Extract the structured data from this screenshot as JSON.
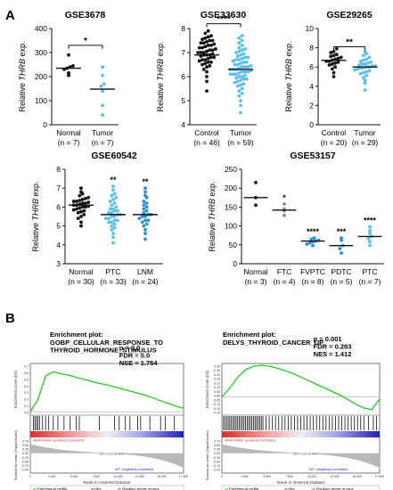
{
  "panel_labels": {
    "A": "A",
    "B": "B"
  },
  "colors": {
    "dark": "#111111",
    "light": "#5bbfe8",
    "mid": "#2b8fd1",
    "gsea_line": "#22cc22",
    "hits": "#111111",
    "gray_area": "#b8b8b8"
  },
  "chart_data": [
    {
      "type": "scatter",
      "title": "GSE3678",
      "ylabel_prefix": "Relative ",
      "ylabel_italic": "THRB",
      "ylabel_suffix": " exp.",
      "ylim": [
        0,
        400
      ],
      "yticks": [
        0,
        100,
        200,
        300,
        400
      ],
      "groups": [
        {
          "name": "Normal",
          "n_label": "(n = 7)",
          "color": "dark",
          "values": [
            205,
            215,
            230,
            235,
            240,
            245,
            290
          ],
          "mean": 235
        },
        {
          "name": "Tumor",
          "n_label": "(n = 7)",
          "color": "light",
          "values": [
            40,
            80,
            140,
            160,
            170,
            205,
            240
          ],
          "mean": 148
        }
      ],
      "significance": [
        {
          "from": 0,
          "to": 1,
          "label": "*",
          "level": 330
        }
      ]
    },
    {
      "type": "scatter",
      "title": "GSE33630",
      "ylabel_prefix": "Relative ",
      "ylabel_italic": "THRB",
      "ylabel_suffix": " exp.",
      "ylim": [
        4,
        8
      ],
      "yticks": [
        4,
        5,
        6,
        7,
        8
      ],
      "groups": [
        {
          "name": "Control",
          "n_label": "(n = 46)",
          "color": "dark",
          "values": [
            5.4,
            5.8,
            6.0,
            6.2,
            6.3,
            6.4,
            6.45,
            6.5,
            6.55,
            6.6,
            6.6,
            6.65,
            6.7,
            6.7,
            6.75,
            6.8,
            6.8,
            6.85,
            6.9,
            6.9,
            6.9,
            6.95,
            7.0,
            7.0,
            7.0,
            7.05,
            7.1,
            7.1,
            7.15,
            7.2,
            7.2,
            7.25,
            7.3,
            7.3,
            7.35,
            7.4,
            7.4,
            7.45,
            7.5,
            7.5,
            7.55,
            7.6,
            7.65,
            7.7,
            7.8,
            7.9
          ],
          "mean": 6.9
        },
        {
          "name": "Tumor",
          "n_label": "(n = 59)",
          "color": "light",
          "values": [
            4.5,
            4.8,
            5.0,
            5.2,
            5.3,
            5.4,
            5.5,
            5.6,
            5.65,
            5.7,
            5.75,
            5.8,
            5.85,
            5.9,
            5.9,
            5.95,
            6.0,
            6.0,
            6.05,
            6.1,
            6.1,
            6.1,
            6.15,
            6.2,
            6.2,
            6.2,
            6.25,
            6.3,
            6.3,
            6.3,
            6.35,
            6.4,
            6.4,
            6.4,
            6.45,
            6.5,
            6.5,
            6.55,
            6.6,
            6.6,
            6.65,
            6.7,
            6.7,
            6.75,
            6.8,
            6.8,
            6.85,
            6.9,
            6.95,
            7.0,
            7.05,
            7.1,
            7.15,
            7.2,
            7.3,
            7.4,
            7.5,
            7.6,
            7.7
          ],
          "mean": 6.3
        }
      ],
      "significance": [
        {
          "from": 0,
          "to": 1,
          "label": "****",
          "level": 8.2
        }
      ]
    },
    {
      "type": "scatter",
      "title": "GSE29265",
      "ylabel_prefix": "Relative ",
      "ylabel_italic": "THRB",
      "ylabel_suffix": " exp.",
      "ylim": [
        0,
        10
      ],
      "yticks": [
        0,
        2,
        4,
        6,
        8,
        10
      ],
      "groups": [
        {
          "name": "Control",
          "n_label": "(n = 20)",
          "color": "dark",
          "values": [
            5.0,
            5.4,
            5.8,
            6.0,
            6.2,
            6.3,
            6.4,
            6.5,
            6.6,
            6.6,
            6.7,
            6.8,
            6.9,
            7.0,
            7.1,
            7.2,
            7.3,
            7.5,
            7.6,
            7.9
          ],
          "mean": 6.7
        },
        {
          "name": "Tumor",
          "n_label": "(n = 29)",
          "color": "light",
          "values": [
            3.6,
            4.3,
            4.6,
            4.9,
            5.1,
            5.3,
            5.4,
            5.5,
            5.6,
            5.7,
            5.8,
            5.9,
            5.9,
            6.0,
            6.0,
            6.1,
            6.1,
            6.2,
            6.3,
            6.3,
            6.4,
            6.5,
            6.6,
            6.7,
            6.8,
            7.0,
            7.2,
            7.4,
            7.6
          ],
          "mean": 6.0
        }
      ],
      "significance": [
        {
          "from": 0,
          "to": 1,
          "label": "**",
          "level": 8.1
        }
      ]
    },
    {
      "type": "scatter",
      "title": "GSE60542",
      "ylabel_prefix": "Relative ",
      "ylabel_italic": "THRB",
      "ylabel_suffix": " exp.",
      "ylim": [
        3,
        8
      ],
      "yticks": [
        3,
        4,
        5,
        6,
        7,
        8
      ],
      "groups": [
        {
          "name": "Normal",
          "n_label": "(n = 30)",
          "color": "dark",
          "values": [
            5.0,
            5.2,
            5.4,
            5.5,
            5.6,
            5.7,
            5.75,
            5.8,
            5.85,
            5.9,
            5.95,
            6.0,
            6.0,
            6.05,
            6.1,
            6.1,
            6.15,
            6.2,
            6.2,
            6.25,
            6.3,
            6.3,
            6.35,
            6.4,
            6.45,
            6.5,
            6.6,
            6.7,
            6.8,
            7.0
          ],
          "mean": 6.1
        },
        {
          "name": "PTC",
          "n_label": "(n = 33)",
          "color": "light",
          "values": [
            4.1,
            4.4,
            4.6,
            4.8,
            4.9,
            5.0,
            5.1,
            5.2,
            5.2,
            5.3,
            5.3,
            5.4,
            5.4,
            5.5,
            5.5,
            5.6,
            5.6,
            5.7,
            5.7,
            5.8,
            5.8,
            5.9,
            5.9,
            6.0,
            6.1,
            6.2,
            6.3,
            6.4,
            6.5,
            6.6,
            6.7,
            6.9,
            7.1
          ],
          "mean": 5.6
        },
        {
          "name": "LNM",
          "n_label": "(n = 24)",
          "color": "mid",
          "values": [
            4.3,
            4.6,
            4.8,
            5.0,
            5.1,
            5.2,
            5.3,
            5.3,
            5.4,
            5.5,
            5.5,
            5.6,
            5.6,
            5.7,
            5.8,
            5.9,
            6.0,
            6.1,
            6.2,
            6.3,
            6.5,
            6.6,
            6.8,
            7.0
          ],
          "mean": 5.6
        }
      ],
      "group_marks": [
        {
          "group": 1,
          "label": "**"
        },
        {
          "group": 2,
          "label": "**"
        }
      ]
    },
    {
      "type": "scatter",
      "title": "GSE53157",
      "ylabel_prefix": "Relative ",
      "ylabel_italic": "THRB",
      "ylabel_suffix": " exp.",
      "ylim": [
        0,
        250
      ],
      "yticks": [
        0,
        50,
        100,
        150,
        200,
        250
      ],
      "groups": [
        {
          "name": "Normal",
          "n_label": "(n = 3)",
          "color": "dark",
          "values": [
            155,
            175,
            215
          ],
          "mean": 175
        },
        {
          "name": "FTC",
          "n_label": "(n = 4)",
          "color": "#888888",
          "values": [
            128,
            140,
            145,
            158
          ],
          "mean": 142
        },
        {
          "name": "FVPTC",
          "n_label": "(n = 8)",
          "color": "mid",
          "values": [
            48,
            52,
            55,
            58,
            60,
            62,
            65,
            68
          ],
          "mean": 60
        },
        {
          "name": "PDTC",
          "n_label": "(n = 5)",
          "color": "mid",
          "values": [
            28,
            40,
            48,
            62,
            68
          ],
          "mean": 48
        },
        {
          "name": "PTC",
          "n_label": "(n = 7)",
          "color": "light",
          "values": [
            48,
            58,
            66,
            72,
            80,
            88,
            98
          ],
          "mean": 72
        }
      ],
      "group_marks": [
        {
          "group": 1,
          "label": "*"
        },
        {
          "group": 2,
          "label": "****"
        },
        {
          "group": 3,
          "label": "***"
        },
        {
          "group": 4,
          "label": "****"
        }
      ]
    }
  ],
  "gsea": [
    {
      "heading": "Enrichment plot:",
      "title_lines": [
        "GOBP_CELLULAR_RESPONSE_TO",
        "THYROID_HORMONE_STIMULUS"
      ],
      "stats": [
        "p = 0.0",
        "FDR = 0.0",
        "NSE = 1.754"
      ],
      "ylabel_top": "Enrichment score (ES)",
      "ylabel_bottom": "Ranked list metric (Signal2Noise)",
      "xlabel": "Rank in Ordered Dataset",
      "pos_label": "'BRAFV600E' (positively correlated)",
      "neg_label": "'WT' (negatively correlated)",
      "zero_label": "Zero cross at 3217",
      "es_ticks": [
        "0.7",
        "0.6",
        "0.5",
        "0.4",
        "0.3",
        "0.2",
        "0.1",
        "0.0"
      ],
      "rank_ticks": [
        "0.75",
        "0.50",
        "0.25",
        "0.00",
        "-0.25",
        "-0.50",
        "-0.75",
        "-1.00"
      ],
      "x_ticks": [
        "0",
        "2,500",
        "5,000",
        "7,500",
        "10,000",
        "12,500",
        "15,000",
        "17,500"
      ],
      "es_curve": [
        0.0,
        0.18,
        0.52,
        0.58,
        0.55,
        0.53,
        0.5,
        0.47,
        0.44,
        0.41,
        0.39,
        0.36,
        0.33,
        0.3,
        0.27,
        0.24,
        0.2,
        0.16,
        0.12,
        0.08,
        0.05
      ],
      "es_range": [
        -0.05,
        0.7
      ],
      "hits": [
        0.02,
        0.03,
        0.04,
        0.05,
        0.06,
        0.08,
        0.1,
        0.12,
        0.15,
        0.18,
        0.22,
        0.26,
        0.3,
        0.32,
        0.45,
        0.55,
        0.58,
        0.62,
        0.65,
        0.7,
        0.72,
        0.78,
        0.85,
        0.88,
        0.94
      ],
      "legend": [
        "Enrichment profile",
        "Hits",
        "Ranking metric scores"
      ]
    },
    {
      "heading": "Enrichment plot:",
      "title_lines": [
        "DELYS_THYROID_CANCER_UP"
      ],
      "stats": [
        "p = 0.001",
        "FDR = 0.283",
        "NES = 1.412"
      ],
      "ylabel_top": "Enrichment score (ES)",
      "ylabel_bottom": "Ranked list metric (Signal2Noise)",
      "xlabel": "Rank in Ordered Dataset",
      "pos_label": "'BRAFV600E' (positively correlated)",
      "neg_label": "'WT' (negatively correlated)",
      "zero_label": "Zero cross at 3217",
      "es_ticks": [
        "0.35",
        "0.30",
        "0.25",
        "0.20",
        "0.15",
        "0.10",
        "0.05",
        "0.00",
        "-0.05",
        "-0.10",
        "-0.15",
        "-0.20"
      ],
      "rank_ticks": [
        "0.75",
        "0.50",
        "0.25",
        "0.00",
        "-0.25",
        "-0.50",
        "-0.75",
        "-1.00"
      ],
      "x_ticks": [
        "0",
        "2,500",
        "5,000",
        "7,500",
        "10,000",
        "12,500",
        "15,000",
        "17,500"
      ],
      "es_curve": [
        0.0,
        0.1,
        0.22,
        0.3,
        0.34,
        0.35,
        0.34,
        0.32,
        0.29,
        0.26,
        0.22,
        0.18,
        0.14,
        0.1,
        0.06,
        0.02,
        -0.03,
        -0.08,
        -0.12,
        -0.14,
        -0.02
      ],
      "es_range": [
        -0.2,
        0.37
      ],
      "hits": [
        0.01,
        0.02,
        0.03,
        0.04,
        0.05,
        0.06,
        0.07,
        0.08,
        0.09,
        0.1,
        0.11,
        0.12,
        0.13,
        0.14,
        0.15,
        0.16,
        0.17,
        0.18,
        0.19,
        0.2,
        0.21,
        0.22,
        0.23,
        0.24,
        0.25,
        0.26,
        0.28,
        0.3,
        0.32,
        0.34,
        0.36,
        0.38,
        0.4,
        0.42,
        0.44,
        0.46,
        0.48,
        0.5,
        0.52,
        0.54,
        0.56,
        0.58,
        0.6,
        0.62,
        0.64,
        0.66,
        0.68,
        0.7,
        0.72,
        0.74,
        0.76,
        0.78,
        0.8,
        0.82,
        0.84,
        0.86,
        0.88,
        0.9,
        0.93,
        0.96,
        0.98
      ],
      "legend": [
        "Enrichment profile",
        "Hits",
        "Ranking metric scores"
      ]
    }
  ]
}
